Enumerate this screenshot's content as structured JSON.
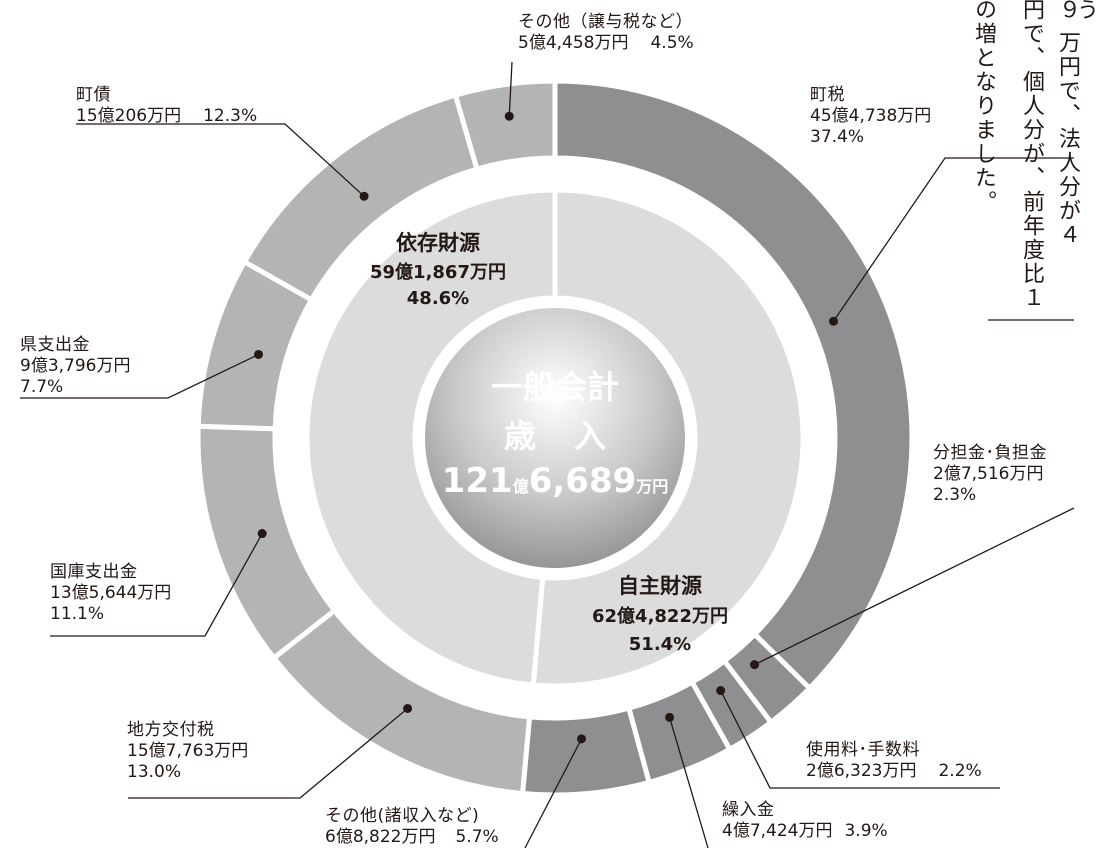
{
  "chart_data": {
    "type": "pie",
    "center_label": {
      "line1": "一般会計",
      "line2a": "歳",
      "line2b": "入",
      "total_num1": "121",
      "total_unit1": "億",
      "total_num2": "6,689",
      "total_unit2": "万円"
    },
    "groups": [
      {
        "name": "依存財源",
        "amount": "59億1,867万円",
        "percent_label": "48.6%",
        "percent": 48.6,
        "color": "#dcdcdd"
      },
      {
        "name": "自主財源",
        "amount": "62億4,822万円",
        "percent_label": "51.4%",
        "percent": 51.4,
        "color": "#dcdcdd"
      }
    ],
    "slices": [
      {
        "name": "町税",
        "amount": "45億4,738万円",
        "percent_label": "37.4%",
        "percent": 37.4,
        "group": "自主財源",
        "color": "#8f8f91"
      },
      {
        "name": "分担金･負担金",
        "amount": "2億7,516万円",
        "percent_label": "2.3%",
        "percent": 2.3,
        "group": "自主財源",
        "color": "#8f8f91"
      },
      {
        "name": "使用料･手数料",
        "amount": "2億6,323万円",
        "percent_label": "2.2%",
        "percent": 2.2,
        "group": "自主財源",
        "color": "#8f8f91"
      },
      {
        "name": "繰入金",
        "amount": "4億7,424万円",
        "percent_label": "3.9%",
        "percent": 3.9,
        "group": "自主財源",
        "color": "#8f8f91"
      },
      {
        "name": "その他(諸収入など)",
        "amount": "6億8,822万円",
        "percent_label": "5.7%",
        "percent": 5.7,
        "group": "自主財源",
        "color": "#8f8f91"
      },
      {
        "name": "地方交付税",
        "amount": "15億7,763万円",
        "percent_label": "13.0%",
        "percent": 13.0,
        "group": "依存財源",
        "color": "#b4b4b5"
      },
      {
        "name": "国庫支出金",
        "amount": "13億5,644万円",
        "percent_label": "11.1%",
        "percent": 11.1,
        "group": "依存財源",
        "color": "#b4b4b5"
      },
      {
        "name": "県支出金",
        "amount": "9億3,796万円",
        "percent_label": "7.7%",
        "percent": 7.7,
        "group": "依存財源",
        "color": "#b4b4b5"
      },
      {
        "name": "町債",
        "amount": "15億206万円",
        "percent_label": "12.3%",
        "percent": 12.3,
        "group": "依存財源",
        "color": "#b4b4b5"
      },
      {
        "name": "その他（譲与税など）",
        "amount": "5億4,458万円",
        "percent_label": "4.5%",
        "percent": 4.5,
        "group": "依存財源",
        "color": "#b4b4b5"
      }
    ]
  },
  "side_text": {
    "col1": "の増となりました。",
    "col2": "円で、個人分が、前年度比１",
    "col3": "９ 万円で、法人分が４",
    "col4": "う"
  }
}
